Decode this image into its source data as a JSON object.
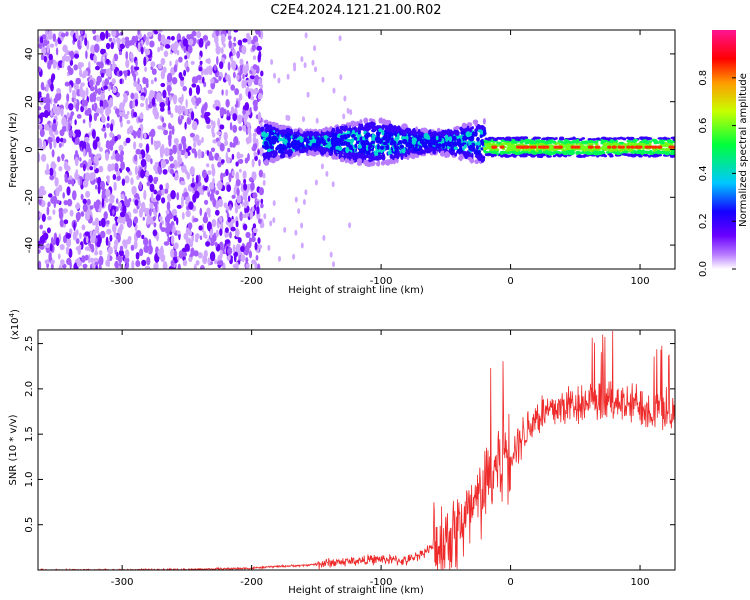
{
  "figure_title": "C2E4.2024.121.21.00.R02",
  "chart_data": [
    {
      "type": "heatmap",
      "xlabel": "Height of straight line (km)",
      "ylabel": "Frequency (Hz)",
      "xlim": [
        -365,
        127
      ],
      "ylim": [
        -50,
        50
      ],
      "x_ticks": [
        -300,
        -200,
        -100,
        0,
        100
      ],
      "y_ticks": [
        -40,
        -20,
        0,
        20,
        40
      ],
      "colorbar": {
        "label": "Normalized spectral amplitude",
        "range": [
          0,
          1
        ],
        "ticks": [
          0.0,
          0.2,
          0.4,
          0.6,
          0.8
        ],
        "colors": [
          "#ffffff",
          "#b87cff",
          "#6a00ff",
          "#1400ff",
          "#00c8ff",
          "#00ff3c",
          "#c8ff00",
          "#ff9a00",
          "#ff0000",
          "#ff1493"
        ]
      },
      "regions": [
        {
          "x_range": [
            -365,
            -192
          ],
          "description": "broadband noise",
          "amplitude": 0.15
        },
        {
          "x_range": [
            -192,
            -20
          ],
          "center_freq": 3,
          "bandwidth": 8,
          "amplitude": 0.3
        },
        {
          "x_range": [
            -20,
            127
          ],
          "center_freq": 1,
          "bandwidth": 4,
          "amplitude": 0.85
        }
      ]
    },
    {
      "type": "line",
      "xlabel": "Height of straight line (km)",
      "ylabel": "SNR (10 * v/v)",
      "y_multiplier": "(x10^4)",
      "xlim": [
        -365,
        127
      ],
      "ylim": [
        0,
        2.65
      ],
      "x_ticks": [
        -300,
        -200,
        -100,
        0,
        100
      ],
      "y_ticks": [
        0.5,
        1.0,
        1.5,
        2.0,
        2.5
      ],
      "series": [
        {
          "color": "#ee2a2a",
          "x": [
            -365,
            -300,
            -250,
            -200,
            -180,
            -160,
            -140,
            -120,
            -100,
            -80,
            -60,
            -50,
            -40,
            -30,
            -20,
            -15,
            -10,
            -5,
            0,
            10,
            20,
            30,
            40,
            50,
            60,
            70,
            80,
            90,
            100,
            110,
            120,
            127
          ],
          "y": [
            0.0,
            0.0,
            0.005,
            0.02,
            0.04,
            0.05,
            0.08,
            0.1,
            0.12,
            0.1,
            0.25,
            0.35,
            0.5,
            0.6,
            0.9,
            1.1,
            1.2,
            1.3,
            1.3,
            1.5,
            1.7,
            1.75,
            1.8,
            1.85,
            1.85,
            1.8,
            1.9,
            1.8,
            1.85,
            1.75,
            1.8,
            1.7
          ]
        }
      ]
    }
  ]
}
